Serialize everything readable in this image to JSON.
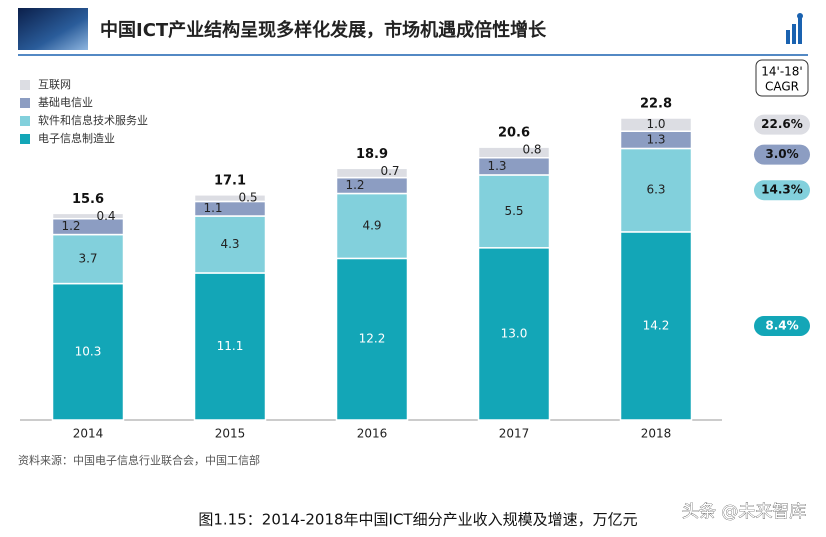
{
  "chart_data": {
    "type": "stacked-bar",
    "title": "中国ICT产业结构呈现多样化发展，市场机遇成倍性增长",
    "categories": [
      "2014",
      "2015",
      "2016",
      "2017",
      "2018"
    ],
    "series": [
      {
        "name": "电子信息制造业",
        "color": "#13a6b7",
        "values": [
          10.3,
          11.1,
          12.2,
          13.0,
          14.2
        ],
        "value_labels": [
          "10.3",
          "11.1",
          "12.2",
          "13.0",
          "14.2"
        ],
        "cagr": 8.4,
        "cagr_label": "8.4%"
      },
      {
        "name": "软件和信息技术服务业",
        "color": "#82d0dc",
        "values": [
          3.7,
          4.3,
          4.9,
          5.5,
          6.3
        ],
        "value_labels": [
          "3.7",
          "4.3",
          "4.9",
          "5.5",
          "6.3"
        ],
        "cagr": 14.3,
        "cagr_label": "14.3%"
      },
      {
        "name": "基础电信业",
        "color": "#8c9dc2",
        "values": [
          1.2,
          1.1,
          1.2,
          1.3,
          1.3
        ],
        "value_labels": [
          "1.2",
          "1.1",
          "1.2",
          "1.3",
          "1.3"
        ],
        "cagr": 3.0,
        "cagr_label": "3.0%"
      },
      {
        "name": "互联网",
        "color": "#dcdde3",
        "values": [
          0.4,
          0.5,
          0.7,
          0.8,
          1.0
        ],
        "value_labels": [
          "0.4",
          "0.5",
          "0.7",
          "0.8",
          "1.0"
        ],
        "cagr": 22.6,
        "cagr_label": "22.6%"
      }
    ],
    "totals": [
      15.6,
      17.1,
      18.9,
      20.6,
      22.8
    ],
    "cagr_title": [
      "14'-18'",
      "CAGR"
    ],
    "source": "资料来源：中国电子信息行业联合会，中国工信部",
    "caption": "图1.15：2014-2018年中国ICT细分产业收入规模及增速，万亿元",
    "watermark": "头条 @未来智库"
  }
}
